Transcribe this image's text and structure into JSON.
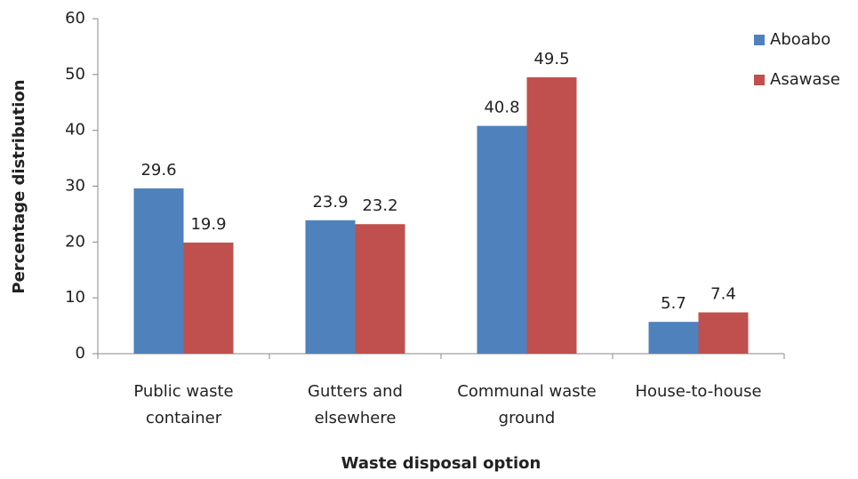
{
  "chart_data": {
    "type": "bar",
    "categories": [
      "Public waste container",
      "Gutters and elsewhere",
      "Communal waste ground",
      "House-to-house"
    ],
    "series": [
      {
        "name": "Aboabo",
        "color": "#4f81bd",
        "values": [
          29.6,
          23.9,
          40.8,
          5.7
        ]
      },
      {
        "name": "Asawase",
        "color": "#c0504d",
        "values": [
          19.9,
          23.2,
          49.5,
          7.4
        ]
      }
    ],
    "xlabel": "Waste disposal option",
    "ylabel": "Percentage distribution",
    "ylim": [
      0,
      60
    ],
    "yticks": [
      0,
      10,
      20,
      30,
      40,
      50,
      60
    ],
    "legend": "right"
  }
}
